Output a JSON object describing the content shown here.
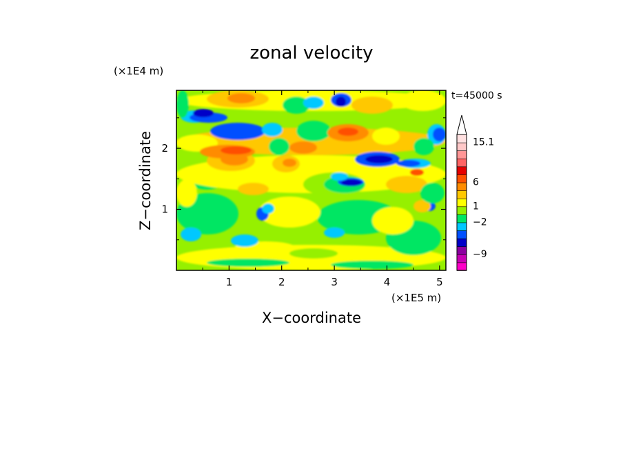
{
  "chart_data": {
    "type": "heatmap",
    "title": "zonal velocity",
    "xlabel": "X−coordinate",
    "ylabel": "Z−coordinate",
    "x_unit": "(×1E5 m)",
    "y_unit": "(×1E4 m)",
    "time_label": "t=45000 s",
    "xlim": [
      0,
      5.12
    ],
    "ylim": [
      0,
      2.95
    ],
    "x_ticks": [
      {
        "value": 1,
        "label": "1"
      },
      {
        "value": 2,
        "label": "2"
      },
      {
        "value": 3,
        "label": "3"
      },
      {
        "value": 4,
        "label": "4"
      },
      {
        "value": 5,
        "label": "5"
      }
    ],
    "y_ticks": [
      {
        "value": 1,
        "label": "1"
      },
      {
        "value": 2,
        "label": "2"
      }
    ],
    "colorbar": {
      "colors_bottom_to_top": [
        "#ff00c8",
        "#c800b4",
        "#8c00a0",
        "#0000c8",
        "#0050ff",
        "#00c8ff",
        "#00e664",
        "#96f000",
        "#ffff00",
        "#ffc800",
        "#ff8c00",
        "#ff5000",
        "#e60000",
        "#ff6464",
        "#ff9696",
        "#ffc8c8",
        "#ffe0e0"
      ],
      "labels": [
        {
          "value": "15.1",
          "level": 16
        },
        {
          "value": "6",
          "level": 11
        },
        {
          "value": "1",
          "level": 8
        },
        {
          "value": "−2",
          "level": 6
        },
        {
          "value": "−9",
          "level": 2
        }
      ],
      "triangle_top": "#ffffff"
    },
    "field_description_note_omitted": true,
    "grid": false
  }
}
